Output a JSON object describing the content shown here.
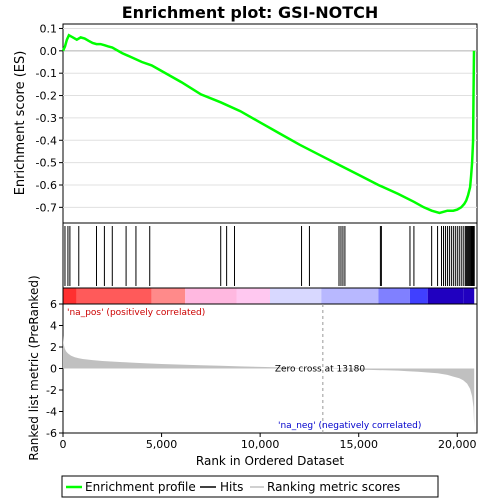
{
  "chart_data": {
    "type": "line",
    "title": "Enrichment plot: GSI-NOTCH",
    "es_panel": {
      "ylabel": "Enrichment score (ES)",
      "ylim": [
        -0.77,
        0.12
      ],
      "yticks": [
        "0.1",
        "0.0",
        "-0.1",
        "-0.2",
        "-0.3",
        "-0.4",
        "-0.5",
        "-0.6",
        "-0.7"
      ],
      "ytick_values": [
        0.1,
        0.0,
        -0.1,
        -0.2,
        -0.3,
        -0.4,
        -0.5,
        -0.6,
        -0.7
      ],
      "grid": true,
      "series": [
        {
          "name": "Enrichment profile",
          "color": "#00ff00",
          "x": [
            0,
            100,
            200,
            300,
            500,
            700,
            900,
            1100,
            1300,
            1500,
            1700,
            1900,
            2100,
            2300,
            2500,
            3000,
            3500,
            4000,
            4500,
            5000,
            6000,
            7000,
            8000,
            9000,
            10000,
            11000,
            12000,
            13000,
            14000,
            15000,
            16000,
            17000,
            17800,
            18300,
            18700,
            19100,
            19300,
            19500,
            19800,
            20000,
            20200,
            20350,
            20450,
            20550,
            20650,
            20700,
            20750,
            20800,
            20820,
            20850
          ],
          "y": [
            0.0,
            0.02,
            0.05,
            0.07,
            0.06,
            0.05,
            0.06,
            0.055,
            0.045,
            0.035,
            0.03,
            0.03,
            0.025,
            0.02,
            0.015,
            -0.01,
            -0.03,
            -0.05,
            -0.065,
            -0.09,
            -0.14,
            -0.195,
            -0.23,
            -0.27,
            -0.32,
            -0.37,
            -0.42,
            -0.465,
            -0.51,
            -0.555,
            -0.6,
            -0.64,
            -0.675,
            -0.7,
            -0.715,
            -0.725,
            -0.72,
            -0.715,
            -0.715,
            -0.71,
            -0.7,
            -0.685,
            -0.67,
            -0.645,
            -0.61,
            -0.56,
            -0.5,
            -0.4,
            -0.2,
            0.0
          ]
        }
      ]
    },
    "hits": {
      "name": "Hits",
      "x": [
        100,
        250,
        350,
        800,
        1700,
        2100,
        2500,
        3200,
        3700,
        4400,
        8000,
        8300,
        8700,
        12100,
        12500,
        14000,
        14100,
        14200,
        14300,
        16100,
        16150,
        17600,
        17800,
        18700,
        19000,
        19200,
        19300,
        19400,
        19500,
        19600,
        19700,
        19800,
        19900,
        20000,
        20100,
        20200,
        20300,
        20400,
        20450,
        20500,
        20550,
        20600,
        20650,
        20700,
        20720,
        20750,
        20780,
        20800,
        20820,
        20840,
        20860
      ]
    },
    "heatmap": {
      "positive_label": "'na_pos' (positively correlated)",
      "negative_label": "'na_neg' (negatively correlated)",
      "colors": [
        "#ff3030",
        "#ff5a5a",
        "#ff8a8a",
        "#ffb8e0",
        "#ffc8f0",
        "#d8d8ff",
        "#b8b8ff",
        "#8080ff",
        "#4040ff",
        "#2000c0"
      ],
      "breaks": [
        0,
        700,
        4500,
        6200,
        8800,
        10500,
        13100,
        16000,
        17600,
        18500,
        20300,
        20860
      ]
    },
    "metric_panel": {
      "name": "Ranking metric scores",
      "ylabel": "Ranked list metric (PreRanked)",
      "xlabel": "Rank in Ordered Dataset",
      "ylim": [
        -6,
        6
      ],
      "yticks": [
        "6",
        "4",
        "2",
        "0",
        "-2",
        "-4",
        "-6"
      ],
      "ytick_values": [
        6,
        4,
        2,
        0,
        -2,
        -4,
        -6
      ],
      "xlim": [
        0,
        21000
      ],
      "xticks": [
        "0",
        "5,000",
        "10,000",
        "15,000",
        "20,000"
      ],
      "xtick_values": [
        0,
        5000,
        10000,
        15000,
        20000
      ],
      "zero_cross_label": "Zero cross at 13180",
      "zero_cross": 13180,
      "x": [
        0,
        30,
        80,
        150,
        250,
        400,
        600,
        800,
        1000,
        1500,
        2000,
        3000,
        4000,
        5000,
        6000,
        7000,
        8000,
        9000,
        10000,
        11000,
        12000,
        13180,
        14000,
        15000,
        16000,
        17000,
        17500,
        18000,
        18500,
        19000,
        19500,
        19800,
        20100,
        20300,
        20500,
        20650,
        20750,
        20820,
        20860
      ],
      "y": [
        3.1,
        2.3,
        1.9,
        1.6,
        1.4,
        1.2,
        1.05,
        0.95,
        0.88,
        0.78,
        0.7,
        0.6,
        0.5,
        0.42,
        0.36,
        0.3,
        0.25,
        0.2,
        0.15,
        0.1,
        0.05,
        0.0,
        -0.05,
        -0.1,
        -0.15,
        -0.2,
        -0.25,
        -0.3,
        -0.37,
        -0.45,
        -0.6,
        -0.75,
        -0.9,
        -1.1,
        -1.4,
        -1.9,
        -2.6,
        -3.6,
        -5.4
      ]
    },
    "legend": {
      "position": "bottom",
      "items": [
        {
          "label": "Enrichment profile",
          "color": "#00ff00"
        },
        {
          "label": "Hits",
          "color": "#000000"
        },
        {
          "label": "Ranking metric scores",
          "color": "#c0c0c0"
        }
      ]
    }
  }
}
